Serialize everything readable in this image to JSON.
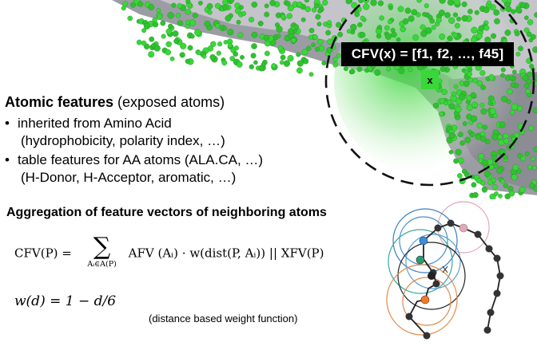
{
  "header": {
    "cfv_label": "CFV(x)  =  [f1, f2, …, f45]",
    "point_label": "x"
  },
  "features": {
    "title_bold": "Atomic features",
    "title_rest": " (exposed atoms)",
    "bullets": [
      {
        "bullet": "•",
        "text": "inherited from Amino Acid",
        "subtext": "(hydrophobicity, polarity index, …)"
      },
      {
        "bullet": "•",
        "text": "table features for AA atoms (ALA.CA, …)",
        "subtext": "(H-Donor, H-Acceptor, aromatic, …)"
      }
    ]
  },
  "aggregation": {
    "title": "Aggregation of feature vectors of neighboring atoms",
    "formula_lhs": "CFV(P) = ",
    "sum_symbol": "∑",
    "sum_index": "Aᵢ∈A(P)",
    "formula_rhs": "AFV (Aᵢ) · w(dist(P, Aᵢ))    ||    XFV(P)",
    "weight_formula": "w(d) = 1 − d/6",
    "weight_note": "(distance based weight function)"
  },
  "colors": {
    "atom_green": "#39d739",
    "surface_grey": "#a9a9b0",
    "circle_blue": "#3a7fc1",
    "circle_teal": "#3aa8a0",
    "circle_pink": "#e4a7b4",
    "circle_orange": "#e08a4a",
    "circle_black": "#222222"
  },
  "icons": [
    "protein-surface",
    "neighborhood-circle",
    "atom-chain"
  ]
}
